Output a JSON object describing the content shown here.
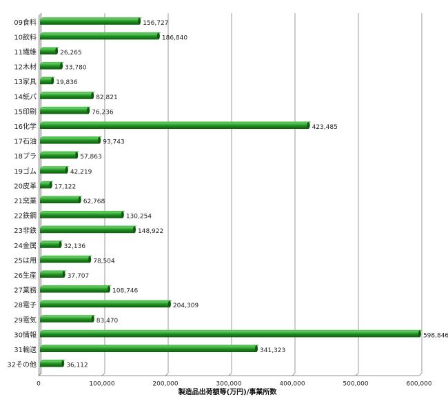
{
  "chart_data": {
    "type": "bar",
    "orientation": "horizontal",
    "categories": [
      "09食料",
      "10飲料",
      "11繊維",
      "12木材",
      "13家具",
      "14紙パ",
      "15印刷",
      "16化学",
      "17石油",
      "18プラ",
      "19ゴム",
      "20皮革",
      "21窯業",
      "22鉄鋼",
      "23非鉄",
      "24金属",
      "25は用",
      "26生産",
      "27業務",
      "28電子",
      "29電気",
      "30情報",
      "31輸送",
      "32その他"
    ],
    "values": [
      156727,
      186840,
      26265,
      33780,
      19836,
      82821,
      76236,
      423485,
      93743,
      57863,
      42219,
      17122,
      62768,
      130254,
      148922,
      32136,
      78504,
      37707,
      108746,
      204309,
      83470,
      598846,
      341323,
      36112
    ],
    "value_labels": [
      "156,727",
      "186,840",
      "26,265",
      "33,780",
      "19,836",
      "82,821",
      "76,236",
      "423,485",
      "93,743",
      "57,863",
      "42,219",
      "17,122",
      "62,768",
      "130,254",
      "148,922",
      "32,136",
      "78,504",
      "37,707",
      "108,746",
      "204,309",
      "83,470",
      "598,846",
      "341,323",
      "36,112"
    ],
    "xlabel": "製造品出荷額等(万円)/事業所数",
    "xlim": [
      0,
      600000
    ],
    "xticks": [
      0,
      100000,
      200000,
      300000,
      400000,
      500000,
      600000
    ],
    "xtick_labels": [
      "0",
      "100,000",
      "200,000",
      "300,000",
      "400,000",
      "500,000",
      "600,000"
    ],
    "grid": "vertical",
    "legend": "none",
    "colors": {
      "bar": "#1e8c1e",
      "bar_dark": "#0f5a0f",
      "bar_light": "#56c256",
      "grid": "#9a9a9a",
      "wall": "#c8c8c8"
    }
  }
}
